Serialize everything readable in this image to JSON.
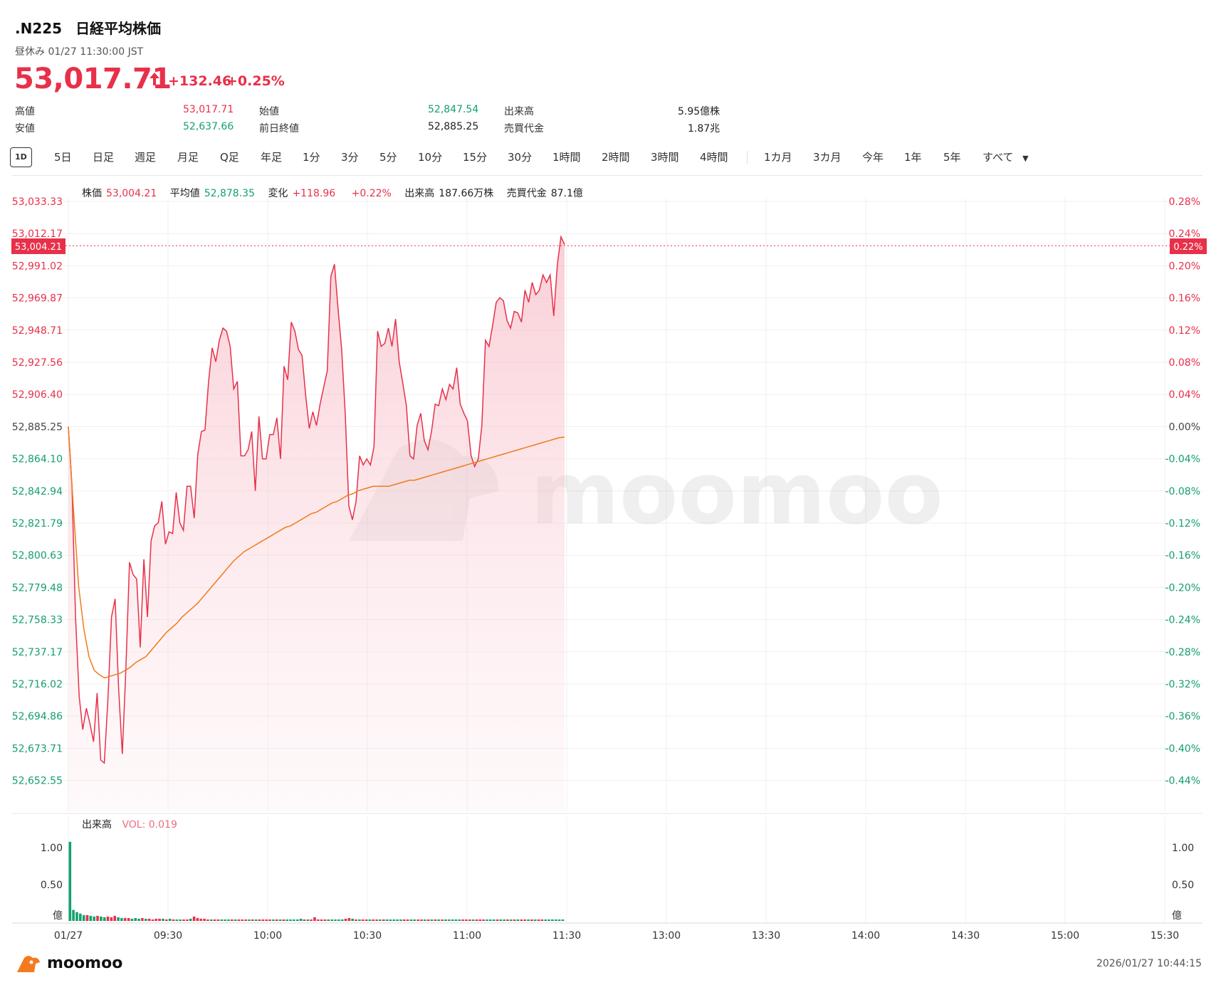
{
  "header": {
    "symbol": ".N225",
    "name": "日経平均株価",
    "status": "昼休み 01/27 11:30:00 JST",
    "price": "53,017.71",
    "arrow": "🠕",
    "change": "+132.46",
    "change_pct": "+0.25%"
  },
  "stats": [
    {
      "label": "高値",
      "value": "53,017.71",
      "color": "red"
    },
    {
      "label": "安値",
      "value": "52,637.66",
      "color": "green"
    },
    {
      "label": "始値",
      "value": "52,847.54",
      "color": "green"
    },
    {
      "label": "前日終値",
      "value": "52,885.25",
      "color": "plain"
    },
    {
      "label": "出来高",
      "value": "5.95億株",
      "color": "plain"
    },
    {
      "label": "売買代金",
      "value": "1.87兆",
      "color": "plain"
    }
  ],
  "tabs": [
    "1D",
    "5日",
    "日足",
    "週足",
    "月足",
    "Q足",
    "年足",
    "1分",
    "3分",
    "5分",
    "10分",
    "15分",
    "30分",
    "1時間",
    "2時間",
    "3時間",
    "4時間",
    "1カ月",
    "3カ月",
    "今年",
    "1年",
    "5年",
    "すべて"
  ],
  "active_tab": "1D",
  "legend": {
    "price_label": "株価",
    "price_value": "53,004.21",
    "avg_label": "平均値",
    "avg_value": "52,878.35",
    "chg_label": "変化",
    "chg_value": "+118.96",
    "chg_pct": "+0.22%",
    "vol_label": "出来高",
    "vol_value": "187.66万株",
    "turnover_label": "売買代金",
    "turnover_value": "87.1億"
  },
  "volume_legend": {
    "label": "出来高",
    "value": "VOL: 0.019"
  },
  "current_marker": {
    "price": "53,004.21",
    "pct": "0.22%"
  },
  "watermark": "moomoo",
  "footer": {
    "brand": "moomoo",
    "timestamp": "2026/01/27 10:44:15"
  },
  "colors": {
    "up": "#e8304a",
    "down": "#16a06e",
    "avg": "#f07a1a",
    "grid": "#efefef"
  },
  "chart_data": {
    "type": "line",
    "prev_close": 52885.25,
    "y_ticks": [
      "53,033.33",
      "53,012.17",
      "52,991.02",
      "52,969.87",
      "52,948.71",
      "52,927.56",
      "52,906.40",
      "52,885.25",
      "52,864.10",
      "52,842.94",
      "52,821.79",
      "52,800.63",
      "52,779.48",
      "52,758.33",
      "52,737.17",
      "52,716.02",
      "52,694.86",
      "52,673.71",
      "52,652.55"
    ],
    "y_ticks_pct": [
      "0.28%",
      "0.24%",
      "0.20%",
      "0.16%",
      "0.12%",
      "0.08%",
      "0.04%",
      "0.00%",
      "-0.04%",
      "-0.08%",
      "-0.12%",
      "-0.16%",
      "-0.20%",
      "-0.24%",
      "-0.28%",
      "-0.32%",
      "-0.36%",
      "-0.40%",
      "-0.44%"
    ],
    "x_ticks": [
      "01/27",
      "09:30",
      "10:00",
      "10:30",
      "11:00",
      "11:30",
      "13:00",
      "13:30",
      "14:00",
      "14:30",
      "15:00",
      "15:30"
    ],
    "price": [
      52885.25,
      52846,
      52760,
      52708,
      52686,
      52700,
      52690,
      52678,
      52710,
      52666,
      52664,
      52706,
      52760,
      52772,
      52712,
      52670,
      52726,
      52796,
      52788,
      52785,
      52740,
      52798,
      52760,
      52810,
      52820,
      52822,
      52836,
      52808,
      52816,
      52815,
      52842,
      52822,
      52817,
      52846,
      52846,
      52825,
      52867,
      52882,
      52883,
      52915,
      52937,
      52928,
      52942,
      52950,
      52948,
      52938,
      52910,
      52915,
      52866,
      52866,
      52870,
      52882,
      52843,
      52892,
      52864,
      52864,
      52880,
      52880,
      52891,
      52864,
      52925,
      52916,
      52954,
      52948,
      52936,
      52932,
      52906,
      52884,
      52895,
      52886,
      52900,
      52911,
      52922,
      52984,
      52992,
      52963,
      52936,
      52894,
      52833,
      52824,
      52836,
      52866,
      52860,
      52864,
      52860,
      52872,
      52948,
      52938,
      52940,
      52950,
      52938,
      52956,
      52928,
      52914,
      52899,
      52866,
      52864,
      52886,
      52894,
      52876,
      52870,
      52882,
      52900,
      52899,
      52910,
      52903,
      52913,
      52910,
      52924,
      52900,
      52894,
      52889,
      52866,
      52859,
      52864,
      52886,
      52942,
      52938,
      52952,
      52967,
      52970,
      52968,
      52955,
      52950,
      52961,
      52960,
      52954,
      52975,
      52967,
      52980,
      52972,
      52975,
      52985,
      52980,
      52985,
      52958,
      52992,
      53010,
      53005
    ],
    "avg": [
      52885.25,
      52830,
      52780,
      52752,
      52734,
      52725,
      52722,
      52720,
      52721,
      52722,
      52723,
      52725,
      52727,
      52730,
      52732,
      52734,
      52738,
      52742,
      52746,
      52750,
      52753,
      52756,
      52760,
      52763,
      52766,
      52769,
      52773,
      52777,
      52781,
      52785,
      52789,
      52793,
      52797,
      52800,
      52803,
      52805,
      52807,
      52809,
      52811,
      52813,
      52815,
      52817,
      52819,
      52820,
      52822,
      52824,
      52826,
      52828,
      52829,
      52831,
      52833,
      52835,
      52836,
      52838,
      52840,
      52841,
      52843,
      52844,
      52845,
      52846,
      52846,
      52846,
      52846,
      52847,
      52848,
      52849,
      52850,
      52850,
      52851,
      52852,
      52853,
      52854,
      52855,
      52856,
      52857,
      52858,
      52859,
      52860,
      52861,
      52862,
      52863,
      52864,
      52865,
      52866,
      52867,
      52868,
      52869,
      52870,
      52871,
      52872,
      52873,
      52874,
      52875,
      52876,
      52877,
      52878,
      52878.35
    ],
    "volume": [
      1.08,
      0.15,
      0.12,
      0.1,
      0.08,
      0.08,
      0.07,
      0.06,
      0.07,
      0.06,
      0.05,
      0.06,
      0.05,
      0.07,
      0.05,
      0.04,
      0.04,
      0.04,
      0.03,
      0.04,
      0.03,
      0.04,
      0.03,
      0.03,
      0.02,
      0.03,
      0.03,
      0.03,
      0.02,
      0.03,
      0.02,
      0.02,
      0.02,
      0.02,
      0.02,
      0.03,
      0.06,
      0.04,
      0.03,
      0.03,
      0.02,
      0.02,
      0.02,
      0.02,
      0.02,
      0.02,
      0.02,
      0.02,
      0.02,
      0.02,
      0.02,
      0.02,
      0.02,
      0.02,
      0.02,
      0.02,
      0.02,
      0.02,
      0.02,
      0.02,
      0.02,
      0.02,
      0.02,
      0.02,
      0.02,
      0.02,
      0.02,
      0.03,
      0.02,
      0.02,
      0.02,
      0.05,
      0.02,
      0.02,
      0.02,
      0.02,
      0.02,
      0.02,
      0.02,
      0.02,
      0.03,
      0.04,
      0.03,
      0.02,
      0.02,
      0.02,
      0.02,
      0.02,
      0.02,
      0.02,
      0.02,
      0.02,
      0.02,
      0.02,
      0.02,
      0.02,
      0.02,
      0.02,
      0.02,
      0.02,
      0.02,
      0.02,
      0.02,
      0.02,
      0.02,
      0.02,
      0.02,
      0.02,
      0.02,
      0.02,
      0.02,
      0.02,
      0.02,
      0.02,
      0.02,
      0.02,
      0.02,
      0.02,
      0.02,
      0.02,
      0.02,
      0.02,
      0.02,
      0.02,
      0.02,
      0.02,
      0.02,
      0.02,
      0.02,
      0.02,
      0.02,
      0.02,
      0.02,
      0.02,
      0.02,
      0.02,
      0.02,
      0.02,
      0.02,
      0.02,
      0.02,
      0.02,
      0.02,
      0.02
    ],
    "volume_y_ticks": [
      "1.00",
      "0.50",
      "億"
    ],
    "ylim": [
      52640,
      53040
    ]
  }
}
